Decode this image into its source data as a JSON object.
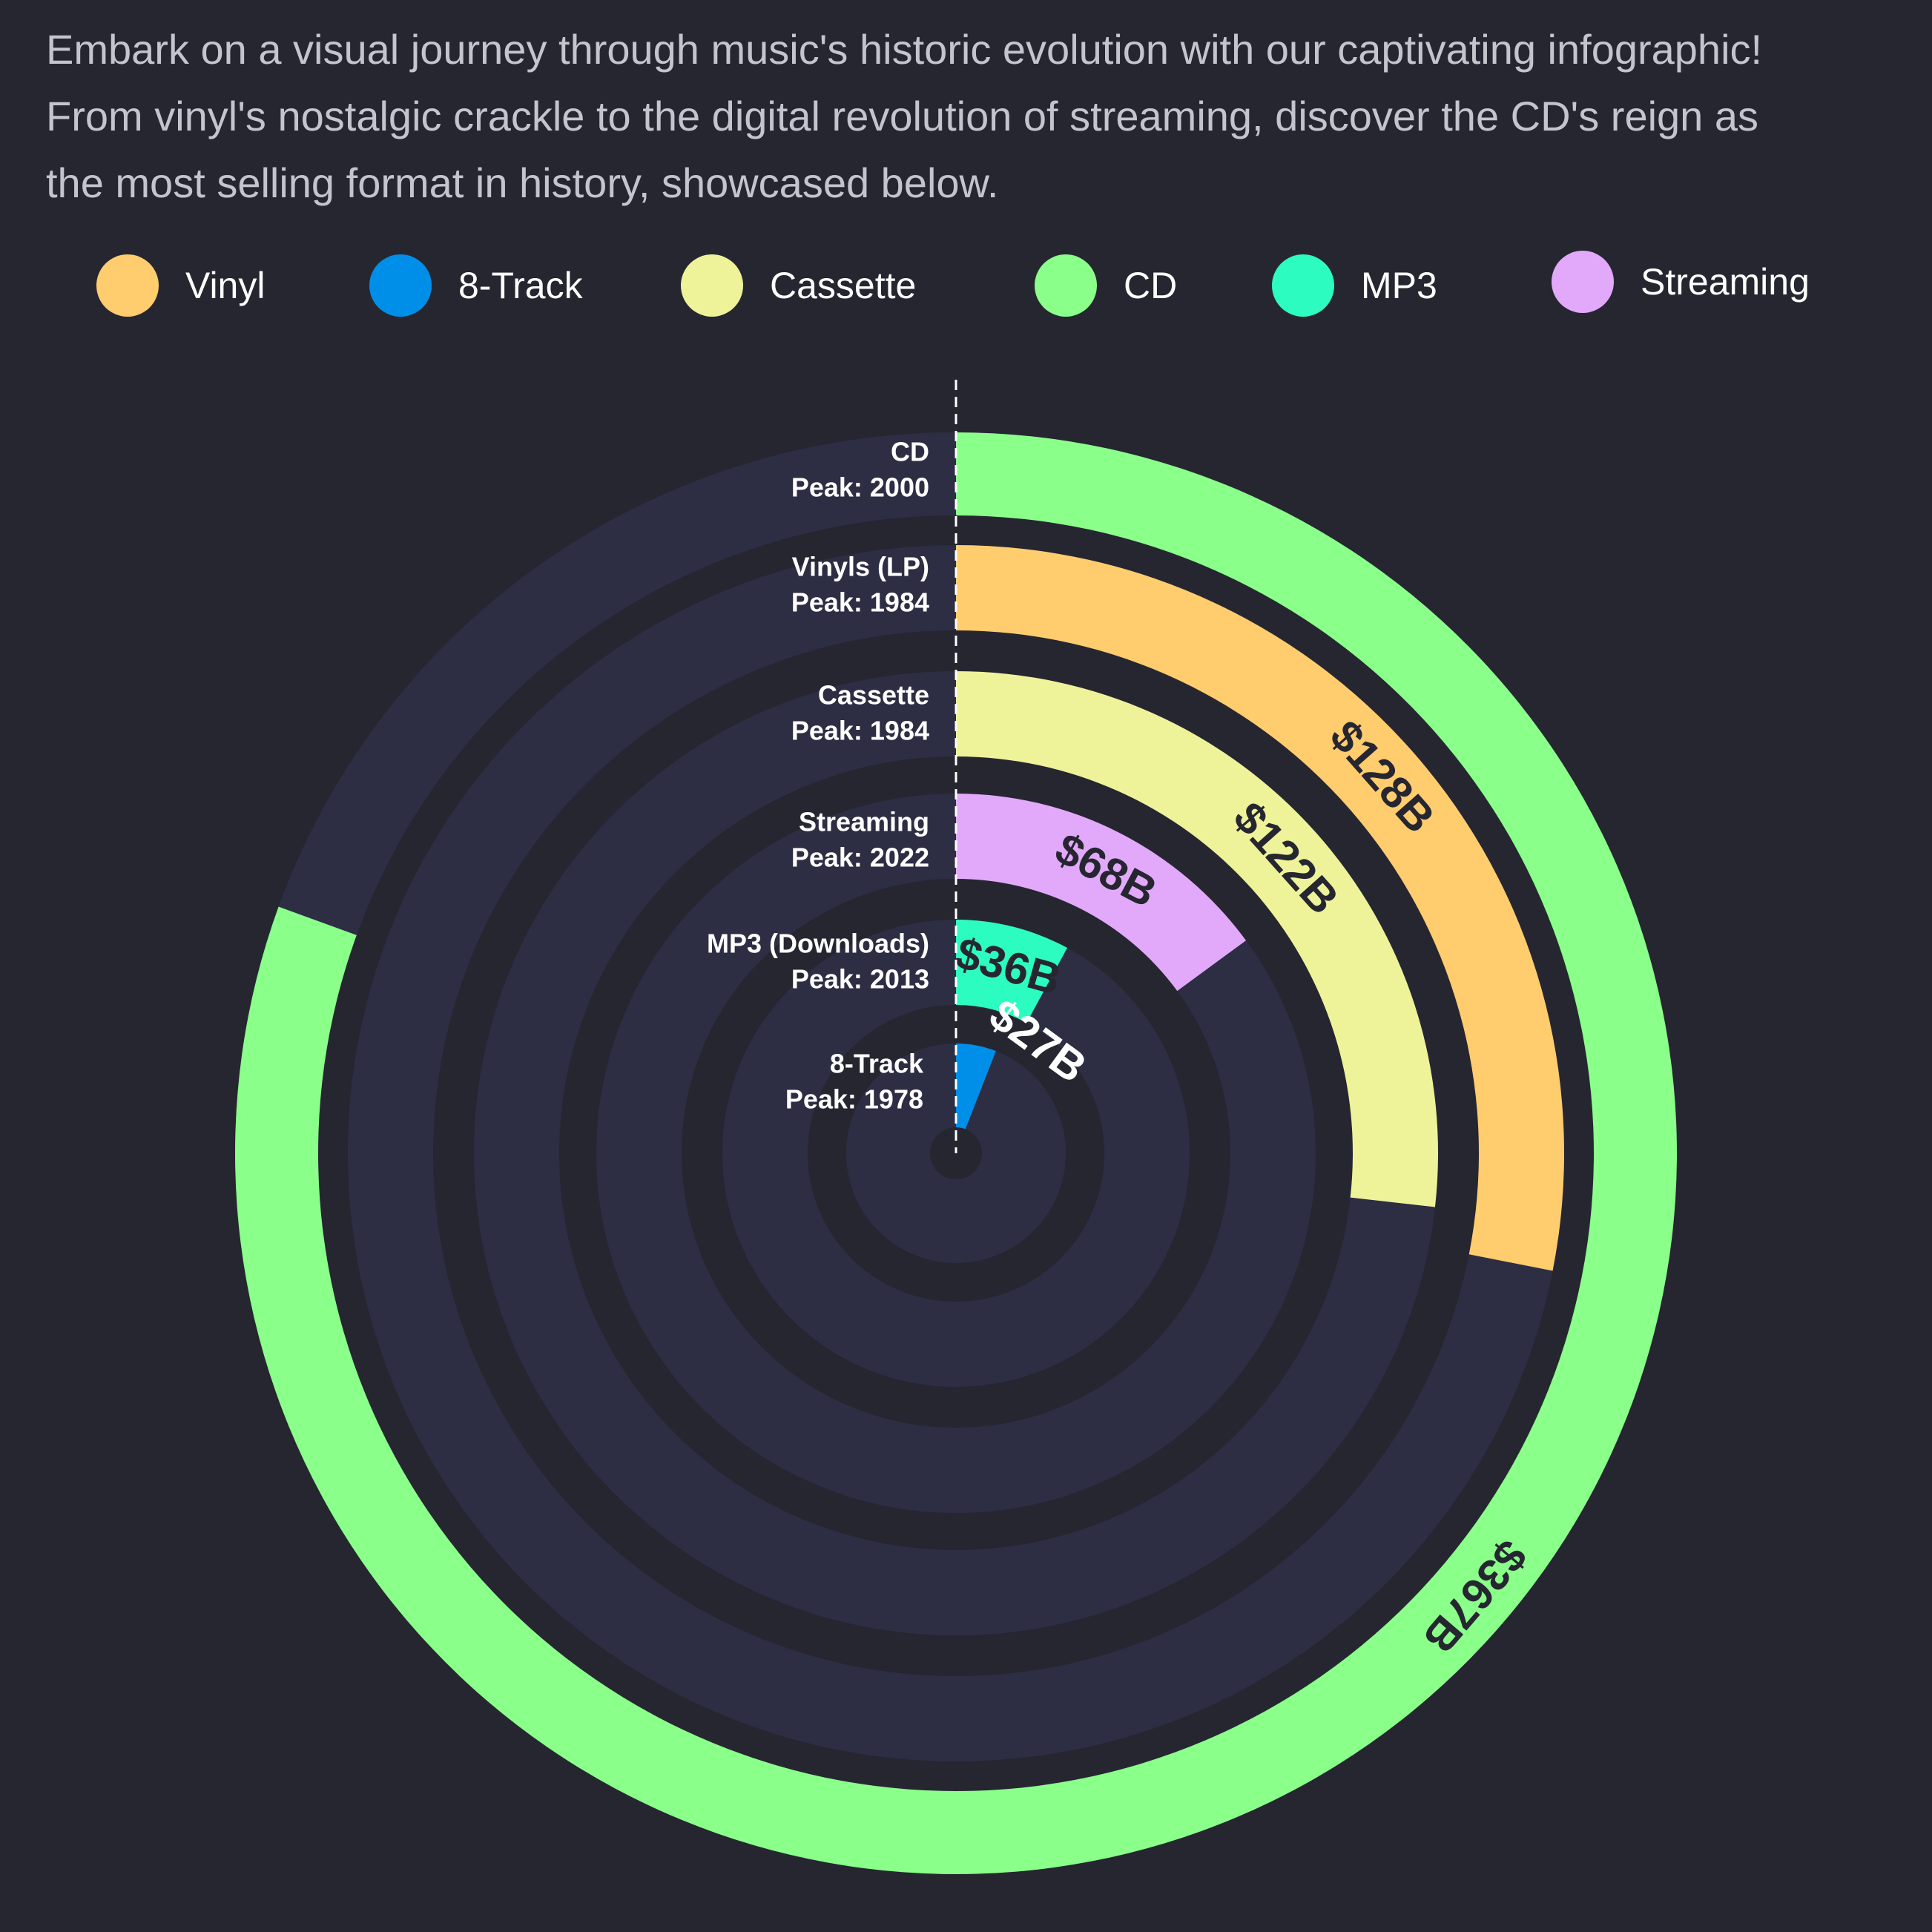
{
  "intro": {
    "lines": [
      "Embark on a visual journey through music's historic evolution with our captivating infographic!",
      "From vinyl's nostalgic crackle to the digital revolution of streaming, discover the CD's reign as",
      "the most selling format in history, showcased below."
    ]
  },
  "legend": [
    {
      "label": "Vinyl",
      "color": "#ffcc6e"
    },
    {
      "label": "8-Track",
      "color": "#008fe8"
    },
    {
      "label": "Cassette",
      "color": "#eef39a"
    },
    {
      "label": "CD",
      "color": "#8aff8a"
    },
    {
      "label": "MP3",
      "color": "#2dfcc0"
    },
    {
      "label": "Streaming",
      "color": "#e2a9fa"
    }
  ],
  "chart_data": {
    "type": "radial-bar",
    "max_value": 367,
    "series": [
      {
        "name": "CD",
        "label": "CD",
        "peak": "Peak: 2000",
        "value": 367,
        "value_label": "$367B",
        "color": "#8aff8a",
        "text_color": "#262631"
      },
      {
        "name": "Vinyl",
        "label": "Vinyls (LP)",
        "peak": "Peak: 1984",
        "value": 128,
        "value_label": "$128B",
        "color": "#ffcc6e",
        "text_color": "#262631"
      },
      {
        "name": "Cassette",
        "label": "Cassette",
        "peak": "Peak: 1984",
        "value": 122,
        "value_label": "$122B",
        "color": "#eef39a",
        "text_color": "#262631"
      },
      {
        "name": "Streaming",
        "label": "Streaming",
        "peak": "Peak: 2022",
        "value": 68,
        "value_label": "$68B",
        "color": "#e2a9fa",
        "text_color": "#262631"
      },
      {
        "name": "MP3",
        "label": "MP3 (Downloads)",
        "peak": "Peak: 2013",
        "value": 36,
        "value_label": "$36B",
        "color": "#2dfcc0",
        "text_color": "#262631"
      },
      {
        "name": "8-Track",
        "label": "8-Track",
        "peak": "Peak: 1978",
        "value": 27,
        "value_label": "$27B",
        "color": "#008fe8",
        "text_color": "#ffffff"
      }
    ],
    "track_color": "#2d2d44"
  }
}
